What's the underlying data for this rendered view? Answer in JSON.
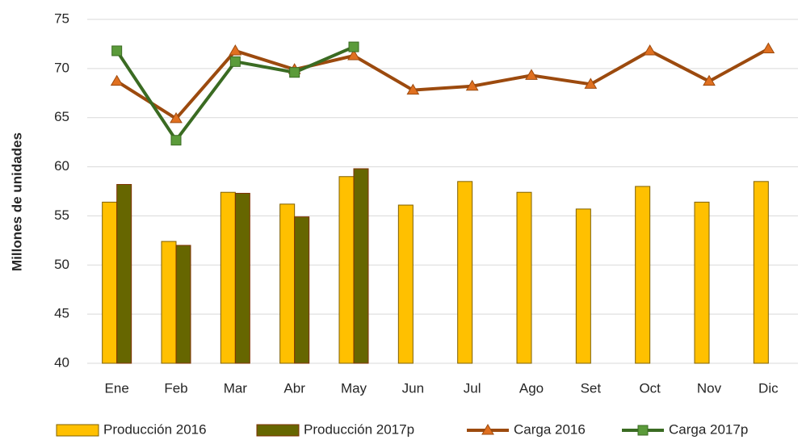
{
  "chart_data": {
    "type": "bar",
    "ylabel": "Millones de unidades",
    "categories": [
      "Ene",
      "Feb",
      "Mar",
      "Abr",
      "May",
      "Jun",
      "Jul",
      "Ago",
      "Set",
      "Oct",
      "Nov",
      "Dic"
    ],
    "ylim": [
      40,
      75
    ],
    "yticks": [
      40,
      45,
      50,
      55,
      60,
      65,
      70,
      75
    ],
    "grid": true,
    "legend": "bottom",
    "series": [
      {
        "name": "Producción 2016",
        "type": "bar",
        "color": "#ffc000",
        "stroke": "#7f6000",
        "values": [
          56.4,
          52.4,
          57.4,
          56.2,
          59.0,
          56.1,
          58.5,
          57.4,
          55.7,
          58.0,
          56.4,
          58.5
        ]
      },
      {
        "name": "Producción 2017p",
        "type": "bar",
        "color": "#666600",
        "stroke": "#7f3000",
        "values": [
          58.2,
          52.0,
          57.3,
          54.9,
          59.8,
          null,
          null,
          null,
          null,
          null,
          null,
          null
        ]
      },
      {
        "name": "Carga 2016",
        "type": "line",
        "color": "#9c4a0e",
        "marker": "triangle",
        "marker_color": "#e07020",
        "values": [
          68.7,
          64.9,
          71.8,
          69.9,
          71.3,
          67.8,
          68.2,
          69.3,
          68.4,
          71.8,
          68.7,
          72.0
        ]
      },
      {
        "name": "Carga 2017p",
        "type": "line",
        "color": "#3a6b22",
        "marker": "square",
        "marker_color": "#5b9b3a",
        "values": [
          71.8,
          62.7,
          70.7,
          69.6,
          72.2,
          null,
          null,
          null,
          null,
          null,
          null,
          null
        ]
      }
    ]
  }
}
